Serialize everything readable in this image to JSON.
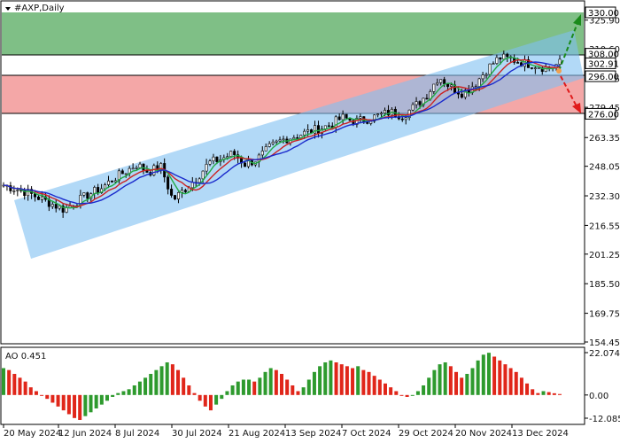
{
  "symbol_title": "#AXP,Daily",
  "indicator_title": "AO 0.451",
  "colors": {
    "green_zone": "#7fbf86",
    "red_zone": "#f4a7a7",
    "channel": "#7fbff2",
    "ma_green": "#22aa44",
    "ma_red": "#cc2222",
    "ma_blue": "#1a2acc",
    "ao_up": "#2e9a2e",
    "ao_down": "#e0261a",
    "arrow_up": "#1a8a1a",
    "arrow_down": "#e01a1a"
  },
  "price_axis": {
    "ticks": [
      "325.90",
      "310.60",
      "294.75",
      "279.45",
      "263.35",
      "248.05",
      "232.30",
      "216.55",
      "201.25",
      "185.50",
      "169.75",
      "154.45"
    ],
    "tagged_levels": [
      {
        "label": "330.00",
        "style": "white"
      },
      {
        "label": "308.00",
        "style": "white"
      },
      {
        "label": "302.91",
        "style": "white"
      },
      {
        "label": "296.00",
        "style": "white"
      },
      {
        "label": "276.00",
        "style": "white"
      }
    ]
  },
  "ao_axis": {
    "ticks": [
      "22.074",
      "0.00",
      "-12.085"
    ]
  },
  "x_axis": {
    "labels": [
      "20 May 2024",
      "12 Jun 2024",
      "8 Jul 2024",
      "30 Jul 2024",
      "21 Aug 2024",
      "13 Sep 2024",
      "7 Oct 2024",
      "29 Oct 2024",
      "20 Nov 2024",
      "13 Dec 2024"
    ]
  },
  "chart_data": {
    "type": "candlestick",
    "title": "#AXP,Daily",
    "y_range": [
      154.45,
      330
    ],
    "levels": [
      330.0,
      308.0,
      302.91,
      296.0,
      276.0
    ],
    "zones": [
      {
        "name": "buy-target-zone",
        "from": 308.0,
        "to": 330.0
      },
      {
        "name": "sell-target-zone",
        "from": 276.0,
        "to": 296.0
      }
    ],
    "close_path": [
      238,
      236,
      234,
      231,
      228,
      225,
      229,
      233,
      236,
      241,
      245,
      249,
      245,
      248,
      230,
      236,
      242,
      250,
      252,
      255,
      249,
      252,
      258,
      262,
      264,
      266,
      268,
      270,
      274,
      272,
      273,
      275,
      277,
      275,
      280,
      286,
      296,
      290,
      287,
      292,
      300,
      306,
      305,
      303,
      302,
      300,
      303
    ],
    "indicator": {
      "name": "AO",
      "value": 0.451,
      "y_range": [
        -12.085,
        22.074
      ],
      "bars": [
        14,
        13,
        11,
        9,
        7,
        4,
        2,
        0,
        -2,
        -4,
        -6,
        -8,
        -10,
        -12,
        -13,
        -11,
        -9,
        -7,
        -5,
        -3,
        -1,
        1,
        2,
        3,
        5,
        7,
        9,
        11,
        13,
        15,
        17,
        16,
        13,
        9,
        5,
        1,
        -3,
        -6,
        -8,
        -5,
        -2,
        2,
        5,
        7,
        8,
        8,
        7,
        9,
        12,
        14,
        13,
        11,
        8,
        5,
        2,
        4,
        8,
        12,
        15,
        17,
        18,
        17,
        16,
        15,
        14,
        15,
        13,
        12,
        10,
        8,
        6,
        4,
        2,
        0,
        -1,
        0,
        2,
        5,
        9,
        13,
        16,
        17,
        15,
        12,
        9,
        11,
        14,
        18,
        21,
        22,
        20,
        18,
        16,
        14,
        12,
        9,
        6,
        3,
        1,
        2,
        1.5,
        0.9,
        0.5
      ]
    },
    "x_labels": [
      "20 May 2024",
      "12 Jun 2024",
      "8 Jul 2024",
      "30 Jul 2024",
      "21 Aug 2024",
      "13 Sep 2024",
      "7 Oct 2024",
      "29 Oct 2024",
      "20 Nov 2024",
      "13 Dec 2024"
    ]
  }
}
